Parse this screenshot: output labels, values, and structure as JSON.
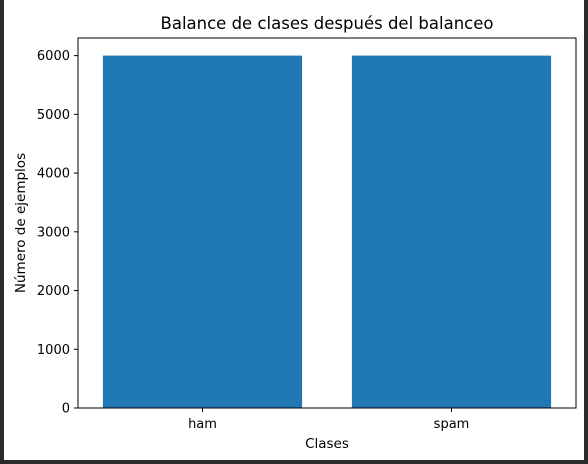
{
  "chart_data": {
    "type": "bar",
    "title": "Balance de clases después del balanceo",
    "xlabel": "Clases",
    "ylabel": "Número de ejemplos",
    "categories": [
      "ham",
      "spam"
    ],
    "values": [
      6000,
      6000
    ],
    "ylim": [
      0,
      6300
    ],
    "yticks": [
      0,
      1000,
      2000,
      3000,
      4000,
      5000,
      6000
    ],
    "bar_color": "#1f77b4",
    "grid": false,
    "legend": "none"
  }
}
